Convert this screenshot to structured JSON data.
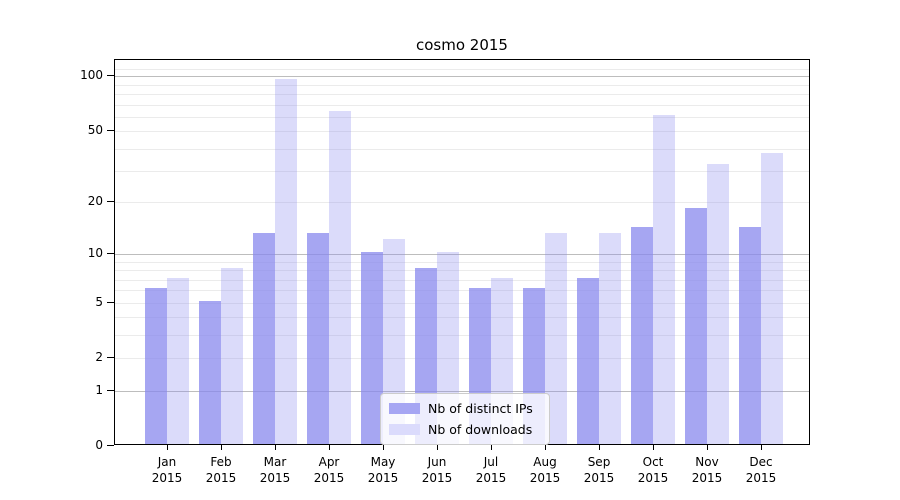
{
  "title": "cosmo 2015",
  "chart_data": {
    "type": "bar",
    "title": "cosmo 2015",
    "categories": [
      "Jan 2015",
      "Feb 2015",
      "Mar 2015",
      "Apr 2015",
      "May 2015",
      "Jun 2015",
      "Jul 2015",
      "Aug 2015",
      "Sep 2015",
      "Oct 2015",
      "Nov 2015",
      "Dec 2015"
    ],
    "series": [
      {
        "name": "Nb of distinct IPs",
        "color": "rgba(136,136,238,0.75)",
        "swatch_color": "#a6a6f3",
        "values": [
          6,
          5,
          13,
          13,
          10,
          8,
          6,
          6,
          7,
          14,
          18,
          14
        ]
      },
      {
        "name": "Nb of downloads",
        "color": "rgba(136,136,238,0.30)",
        "swatch_color": "#dbdbfc",
        "values": [
          7,
          8,
          95,
          63,
          12,
          10,
          7,
          13,
          13,
          60,
          32,
          37
        ]
      }
    ],
    "xlabel": "",
    "ylabel": "",
    "yscale": "log1p",
    "ylim": [
      0,
      122
    ],
    "ytick_values": [
      0,
      1,
      2,
      5,
      10,
      20,
      50,
      100
    ],
    "ytick_labels": [
      "0",
      "1",
      "2",
      "5",
      "10",
      "20",
      "50",
      "100"
    ],
    "major_gridlines": [
      1,
      10,
      100
    ],
    "minor_gridlines": [
      2,
      3,
      4,
      5,
      6,
      7,
      8,
      9,
      20,
      30,
      40,
      50,
      60,
      70,
      80,
      90,
      110
    ],
    "grid": true,
    "legend_position": "lower center",
    "colors": {
      "bar_base": "#8888ee",
      "major_grid": "#bdbdbd",
      "minor_grid": "#ebebeb",
      "axis": "#000000",
      "background": "#ffffff"
    }
  }
}
